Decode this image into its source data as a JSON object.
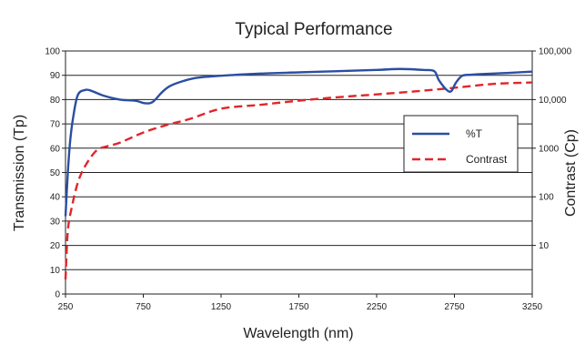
{
  "chart_data": {
    "type": "line",
    "title": "Typical Performance",
    "xlabel": "Wavelength (nm)",
    "ylabel": "Transmission (Tp)",
    "y2label": "Contrast (Cp)",
    "xlim": [
      250,
      3250
    ],
    "ylim": [
      0,
      100
    ],
    "y2lim": [
      1,
      100000
    ],
    "y2scale": "log",
    "xticks": [
      "250",
      "750",
      "1250",
      "1750",
      "2250",
      "2750",
      "3250"
    ],
    "xtick_values": [
      250,
      750,
      1250,
      1750,
      2250,
      2750,
      3250
    ],
    "yticks": [
      "0",
      "10",
      "20",
      "30",
      "40",
      "50",
      "60",
      "70",
      "80",
      "90",
      "100"
    ],
    "ytick_values": [
      0,
      10,
      20,
      30,
      40,
      50,
      60,
      70,
      80,
      90,
      100
    ],
    "y2ticks": [
      "10",
      "100",
      "1000",
      "10,000",
      "100,000"
    ],
    "y2tick_values": [
      10,
      100,
      1000,
      10000,
      100000
    ],
    "grid": true,
    "legend_position": "right",
    "series": [
      {
        "name": "%T",
        "axis": "left",
        "color": "#2b4ea3",
        "style": "solid",
        "x": [
          250,
          265,
          280,
          300,
          330,
          380,
          420,
          500,
          600,
          700,
          760,
          810,
          870,
          920,
          1000,
          1100,
          1250,
          1500,
          1750,
          2000,
          2250,
          2400,
          2550,
          2620,
          2650,
          2700,
          2730,
          2760,
          2800,
          2850,
          2900,
          3000,
          3100,
          3250
        ],
        "y": [
          32,
          50,
          63,
          73,
          82,
          84,
          83.5,
          81.5,
          80,
          79.5,
          78.5,
          79,
          83,
          85.5,
          87.5,
          89,
          89.8,
          90.7,
          91.2,
          91.7,
          92.2,
          92.6,
          92.2,
          91.7,
          88,
          84,
          83.5,
          87,
          89.8,
          90.2,
          90.4,
          90.7,
          91,
          91.5
        ]
      },
      {
        "name": "Contrast",
        "axis": "right",
        "color": "#e0262b",
        "style": "dashed",
        "x": [
          250,
          265,
          290,
          330,
          380,
          450,
          520,
          600,
          750,
          900,
          1050,
          1250,
          1500,
          1750,
          2000,
          2250,
          2500,
          2750,
          3000,
          3250
        ],
        "y": [
          2,
          20,
          60,
          200,
          450,
          900,
          1100,
          1300,
          2100,
          3000,
          4000,
          6500,
          7800,
          9500,
          11200,
          12800,
          14800,
          17500,
          21000,
          22500
        ]
      }
    ]
  }
}
